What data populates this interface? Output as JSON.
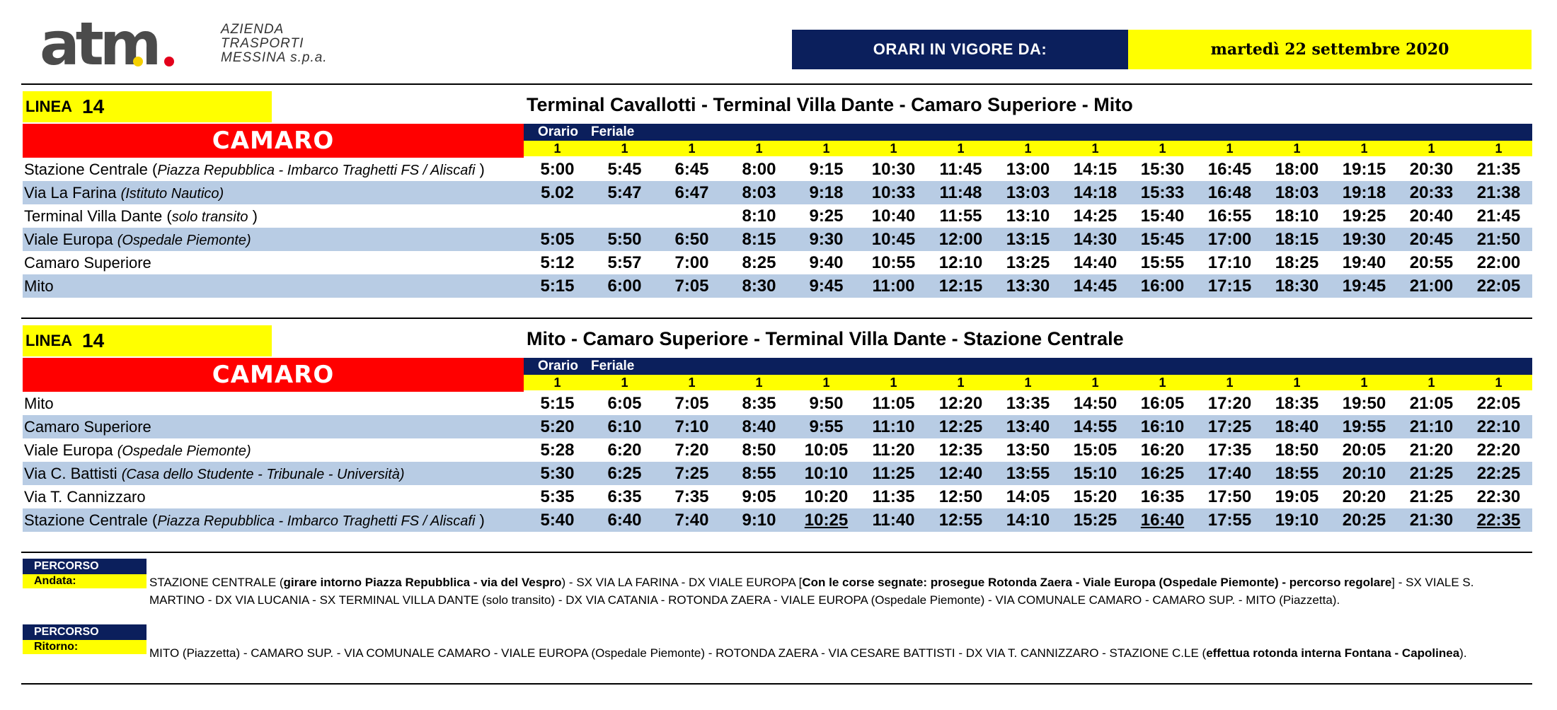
{
  "header": {
    "logo_text": "atm",
    "company_lines": [
      "AZIENDA",
      "TRASPORTI",
      "MESSINA s.p.a."
    ],
    "validity_label": "ORARI IN VIGORE DA:",
    "validity_date": "martedì 22 settembre 2020"
  },
  "colors": {
    "navy": "#0b1f5c",
    "yellow": "#ffff00",
    "red": "#ff0000",
    "row_blue": "#b8cce4",
    "logo_yellow": "#f5d000",
    "logo_red": "#e3001b"
  },
  "tables": [
    {
      "line_label": "LINEA",
      "line_number": "14",
      "line_name": "CAMARO",
      "route_title": "Terminal Cavallotti - Terminal Villa Dante - Camaro Superiore - Mito",
      "orario": "Orario",
      "feriale": "Feriale",
      "runs": [
        "1",
        "1",
        "1",
        "1",
        "1",
        "1",
        "1",
        "1",
        "1",
        "1",
        "1",
        "1",
        "1",
        "1",
        "1"
      ],
      "stops": [
        {
          "name": "Stazione Centrale (",
          "note": "Piazza Repubblica - Imbarco Traghetti FS / Aliscafi",
          "close": " )",
          "alt": false,
          "times": [
            "5:00",
            "5:45",
            "6:45",
            "8:00",
            "9:15",
            "10:30",
            "11:45",
            "13:00",
            "14:15",
            "15:30",
            "16:45",
            "18:00",
            "19:15",
            "20:30",
            "21:35"
          ]
        },
        {
          "name": "Via La Farina ",
          "note": "(Istituto Nautico)",
          "close": "",
          "alt": true,
          "times": [
            "5.02",
            "5:47",
            "6:47",
            "8:03",
            "9:18",
            "10:33",
            "11:48",
            "13:03",
            "14:18",
            "15:33",
            "16:48",
            "18:03",
            "19:18",
            "20:33",
            "21:38"
          ]
        },
        {
          "name": "Terminal Villa Dante (",
          "note": "solo transito",
          "close": " )",
          "alt": false,
          "times": [
            "",
            "",
            "",
            "8:10",
            "9:25",
            "10:40",
            "11:55",
            "13:10",
            "14:25",
            "15:40",
            "16:55",
            "18:10",
            "19:25",
            "20:40",
            "21:45"
          ]
        },
        {
          "name": "Viale Europa ",
          "note": "(Ospedale Piemonte)",
          "close": "",
          "alt": true,
          "times": [
            "5:05",
            "5:50",
            "6:50",
            "8:15",
            "9:30",
            "10:45",
            "12:00",
            "13:15",
            "14:30",
            "15:45",
            "17:00",
            "18:15",
            "19:30",
            "20:45",
            "21:50"
          ]
        },
        {
          "name": "Camaro Superiore",
          "note": "",
          "close": "",
          "alt": false,
          "times": [
            "5:12",
            "5:57",
            "7:00",
            "8:25",
            "9:40",
            "10:55",
            "12:10",
            "13:25",
            "14:40",
            "15:55",
            "17:10",
            "18:25",
            "19:40",
            "20:55",
            "22:00"
          ]
        },
        {
          "name": "Mito",
          "note": "",
          "close": "",
          "alt": true,
          "times": [
            "5:15",
            "6:00",
            "7:05",
            "8:30",
            "9:45",
            "11:00",
            "12:15",
            "13:30",
            "14:45",
            "16:00",
            "17:15",
            "18:30",
            "19:45",
            "21:00",
            "22:05"
          ]
        }
      ]
    },
    {
      "line_label": "LINEA",
      "line_number": "14",
      "line_name": "CAMARO",
      "route_title": "Mito - Camaro Superiore - Terminal Villa Dante - Stazione Centrale",
      "orario": "Orario",
      "feriale": "Feriale",
      "runs": [
        "1",
        "1",
        "1",
        "1",
        "1",
        "1",
        "1",
        "1",
        "1",
        "1",
        "1",
        "1",
        "1",
        "1",
        "1"
      ],
      "stops": [
        {
          "name": "Mito",
          "note": "",
          "close": "",
          "alt": false,
          "times": [
            "5:15",
            "6:05",
            "7:05",
            "8:35",
            "9:50",
            "11:05",
            "12:20",
            "13:35",
            "14:50",
            "16:05",
            "17:20",
            "18:35",
            "19:50",
            "21:05",
            "22:05"
          ]
        },
        {
          "name": "Camaro Superiore",
          "note": "",
          "close": "",
          "alt": true,
          "times": [
            "5:20",
            "6:10",
            "7:10",
            "8:40",
            "9:55",
            "11:10",
            "12:25",
            "13:40",
            "14:55",
            "16:10",
            "17:25",
            "18:40",
            "19:55",
            "21:10",
            "22:10"
          ]
        },
        {
          "name": "Viale Europa ",
          "note": "(Ospedale Piemonte)",
          "close": "",
          "alt": false,
          "times": [
            "5:28",
            "6:20",
            "7:20",
            "8:50",
            "10:05",
            "11:20",
            "12:35",
            "13:50",
            "15:05",
            "16:20",
            "17:35",
            "18:50",
            "20:05",
            "21:20",
            "22:20"
          ]
        },
        {
          "name": "Via C. Battisti ",
          "note": "(Casa dello Studente - Tribunale - Università)",
          "close": "",
          "alt": true,
          "times": [
            "5:30",
            "6:25",
            "7:25",
            "8:55",
            "10:10",
            "11:25",
            "12:40",
            "13:55",
            "15:10",
            "16:25",
            "17:40",
            "18:55",
            "20:10",
            "21:25",
            "22:25"
          ]
        },
        {
          "name": "Via T. Cannizzaro",
          "note": "",
          "close": "",
          "alt": false,
          "times": [
            "5:35",
            "6:35",
            "7:35",
            "9:05",
            "10:20",
            "11:35",
            "12:50",
            "14:05",
            "15:20",
            "16:35",
            "17:50",
            "19:05",
            "20:20",
            "21:25",
            "22:30"
          ]
        },
        {
          "name": "Stazione Centrale (",
          "note": "Piazza Repubblica - Imbarco Traghetti FS / Aliscafi",
          "close": " )",
          "alt": true,
          "times": [
            "5:40",
            "6:40",
            "7:40",
            "9:10",
            "10:25",
            "11:40",
            "12:55",
            "14:10",
            "15:25",
            "16:40",
            "17:55",
            "19:10",
            "20:25",
            "21:30",
            "22:35"
          ],
          "underlined": [
            4,
            9,
            14
          ]
        }
      ]
    }
  ],
  "percorso": {
    "andata": {
      "tag": "PERCORSO",
      "label": "Andata:",
      "parts": [
        {
          "t": "STAZIONE CENTRALE (",
          "b": false
        },
        {
          "t": "girare intorno Piazza Repubblica - via del Vespro",
          "b": true
        },
        {
          "t": ") - SX VIA LA FARINA - DX VIALE EUROPA [",
          "b": false
        },
        {
          "t": "Con le corse segnate: prosegue Rotonda Zaera - Viale Europa (Ospedale Piemonte) - percorso regolare",
          "b": true
        },
        {
          "t": "] - SX VIALE S. MARTINO - DX VIA LUCANIA - SX TERMINAL VILLA DANTE (solo transito) - DX VIA CATANIA - ROTONDA ZAERA - VIALE EUROPA (Ospedale Piemonte) - VIA COMUNALE CAMARO - CAMARO SUP. - MITO (Piazzetta).",
          "b": false
        }
      ]
    },
    "ritorno": {
      "tag": "PERCORSO",
      "label": "Ritorno:",
      "parts": [
        {
          "t": "MITO (Piazzetta) - CAMARO SUP. - VIA COMUNALE CAMARO - VIALE EUROPA (Ospedale Piemonte) - ROTONDA ZAERA - VIA CESARE BATTISTI - DX VIA T. CANNIZZARO - STAZIONE C.LE (",
          "b": false
        },
        {
          "t": "effettua rotonda interna Fontana - Capolinea",
          "b": true
        },
        {
          "t": ").",
          "b": false
        }
      ]
    }
  }
}
